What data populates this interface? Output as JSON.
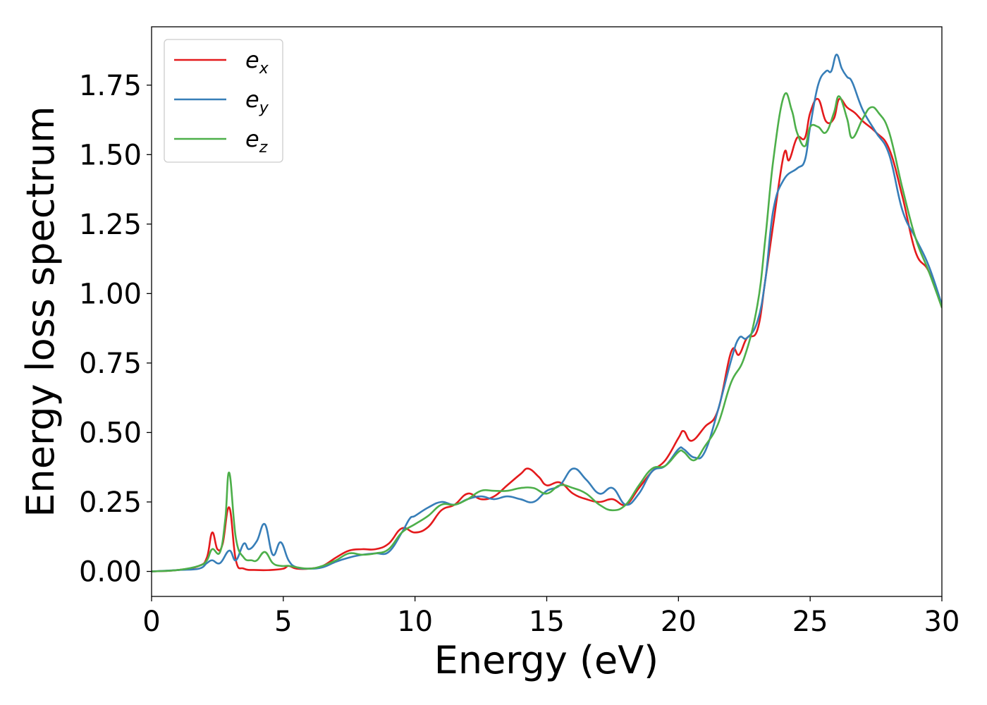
{
  "chart_data": {
    "type": "line",
    "xlabel": "Energy (eV)",
    "ylabel": "Energy loss spectrum",
    "xlim": [
      0,
      30
    ],
    "ylim": [
      -0.09,
      1.96
    ],
    "xticks": [
      0,
      5,
      10,
      15,
      20,
      25,
      30
    ],
    "xtick_labels": [
      "0",
      "5",
      "10",
      "15",
      "20",
      "25",
      "30"
    ],
    "yticks": [
      0.0,
      0.25,
      0.5,
      0.75,
      1.0,
      1.25,
      1.5,
      1.75
    ],
    "ytick_labels": [
      "0.00",
      "0.25",
      "0.50",
      "0.75",
      "1.00",
      "1.25",
      "1.50",
      "1.75"
    ],
    "grid": false,
    "legend_position": "top-left",
    "series": [
      {
        "name_base": "e",
        "name_sub": "x",
        "color": "#e41a1c",
        "x": [
          0,
          1,
          1.8,
          2.1,
          2.3,
          2.5,
          2.7,
          2.95,
          3.2,
          3.5,
          4,
          4.5,
          5,
          5.2,
          5.5,
          6,
          6.5,
          7,
          7.5,
          8,
          8.5,
          9,
          9.5,
          10,
          10.5,
          11,
          11.5,
          12,
          12.5,
          13,
          13.5,
          14,
          14.3,
          14.7,
          15,
          15.5,
          16,
          16.5,
          17,
          17.5,
          18,
          18.5,
          19,
          19.5,
          20,
          20.2,
          20.5,
          21,
          21.5,
          22,
          22.3,
          22.6,
          23,
          23.3,
          23.6,
          24,
          24.2,
          24.5,
          24.8,
          25,
          25.3,
          25.6,
          25.9,
          26.1,
          26.4,
          26.7,
          27,
          27.5,
          28,
          28.5,
          29,
          29.5,
          30
        ],
        "y": [
          0,
          0.005,
          0.02,
          0.05,
          0.14,
          0.08,
          0.1,
          0.23,
          0.04,
          0.01,
          0.005,
          0.005,
          0.01,
          0.02,
          0.01,
          0.01,
          0.02,
          0.05,
          0.075,
          0.08,
          0.08,
          0.1,
          0.155,
          0.14,
          0.16,
          0.22,
          0.24,
          0.28,
          0.26,
          0.27,
          0.31,
          0.35,
          0.37,
          0.34,
          0.31,
          0.32,
          0.28,
          0.26,
          0.25,
          0.26,
          0.24,
          0.3,
          0.36,
          0.4,
          0.48,
          0.505,
          0.47,
          0.52,
          0.58,
          0.79,
          0.78,
          0.84,
          0.87,
          1.05,
          1.25,
          1.5,
          1.48,
          1.56,
          1.56,
          1.65,
          1.7,
          1.62,
          1.63,
          1.7,
          1.67,
          1.65,
          1.62,
          1.58,
          1.52,
          1.35,
          1.15,
          1.08,
          0.95
        ]
      },
      {
        "name_base": "e",
        "name_sub": "y",
        "color": "#377eb8",
        "x": [
          0,
          1,
          1.8,
          2.1,
          2.3,
          2.6,
          2.95,
          3.2,
          3.5,
          3.7,
          4,
          4.3,
          4.6,
          4.9,
          5.2,
          5.5,
          6,
          6.5,
          7,
          7.5,
          8,
          8.5,
          9,
          9.5,
          9.8,
          10,
          10.5,
          11,
          11.5,
          12,
          12.5,
          13,
          13.5,
          14,
          14.5,
          15,
          15.5,
          16,
          16.5,
          17,
          17.5,
          18,
          18.5,
          19,
          19.5,
          20,
          20.2,
          20.6,
          21,
          21.5,
          22,
          22.3,
          22.6,
          23,
          23.3,
          23.6,
          24,
          24.5,
          24.8,
          25,
          25.3,
          25.6,
          25.8,
          26,
          26.2,
          26.4,
          26.6,
          27,
          27.5,
          28,
          28.5,
          29,
          29.5,
          30
        ],
        "y": [
          0,
          0.005,
          0.01,
          0.03,
          0.04,
          0.03,
          0.075,
          0.04,
          0.1,
          0.08,
          0.11,
          0.17,
          0.06,
          0.105,
          0.04,
          0.015,
          0.01,
          0.015,
          0.035,
          0.05,
          0.06,
          0.065,
          0.07,
          0.14,
          0.19,
          0.2,
          0.23,
          0.25,
          0.24,
          0.26,
          0.27,
          0.26,
          0.27,
          0.26,
          0.25,
          0.29,
          0.31,
          0.37,
          0.33,
          0.28,
          0.3,
          0.24,
          0.28,
          0.36,
          0.38,
          0.44,
          0.44,
          0.41,
          0.43,
          0.58,
          0.76,
          0.84,
          0.84,
          0.9,
          1.05,
          1.3,
          1.41,
          1.45,
          1.48,
          1.6,
          1.75,
          1.8,
          1.8,
          1.86,
          1.81,
          1.78,
          1.76,
          1.66,
          1.58,
          1.5,
          1.3,
          1.2,
          1.1,
          0.96
        ]
      },
      {
        "name_base": "e",
        "name_sub": "z",
        "color": "#4daf4a",
        "x": [
          0,
          1,
          1.8,
          2.1,
          2.3,
          2.6,
          2.8,
          2.95,
          3.2,
          3.5,
          3.8,
          4,
          4.3,
          4.6,
          4.9,
          5.2,
          5.5,
          6,
          6.5,
          7,
          7.5,
          8,
          8.5,
          9,
          9.5,
          10,
          10.5,
          11,
          11.5,
          12,
          12.5,
          13,
          13.5,
          14,
          14.5,
          15,
          15.5,
          16,
          16.5,
          17,
          17.5,
          18,
          18.5,
          19,
          19.5,
          20,
          20.2,
          20.6,
          21,
          21.5,
          22,
          22.5,
          23,
          23.3,
          23.6,
          24,
          24.3,
          24.5,
          24.8,
          25,
          25.3,
          25.6,
          25.9,
          26.1,
          26.4,
          26.6,
          27,
          27.3,
          27.6,
          28,
          28.5,
          29,
          29.5,
          30
        ],
        "y": [
          0,
          0.005,
          0.02,
          0.04,
          0.08,
          0.07,
          0.19,
          0.355,
          0.12,
          0.05,
          0.04,
          0.04,
          0.07,
          0.03,
          0.02,
          0.02,
          0.015,
          0.01,
          0.02,
          0.04,
          0.065,
          0.06,
          0.065,
          0.08,
          0.14,
          0.17,
          0.2,
          0.24,
          0.24,
          0.26,
          0.29,
          0.29,
          0.29,
          0.3,
          0.3,
          0.28,
          0.31,
          0.3,
          0.28,
          0.24,
          0.22,
          0.24,
          0.31,
          0.37,
          0.38,
          0.43,
          0.43,
          0.4,
          0.45,
          0.53,
          0.68,
          0.77,
          0.96,
          1.2,
          1.48,
          1.71,
          1.66,
          1.58,
          1.53,
          1.6,
          1.6,
          1.58,
          1.65,
          1.71,
          1.63,
          1.56,
          1.63,
          1.67,
          1.65,
          1.58,
          1.38,
          1.2,
          1.08,
          0.95
        ]
      }
    ]
  }
}
